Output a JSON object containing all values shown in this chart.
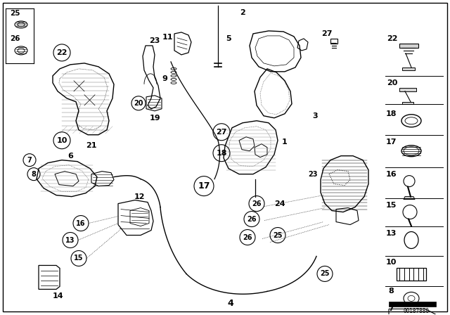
{
  "bg_color": "#ffffff",
  "part_number": "00187880",
  "fig_w": 6.4,
  "fig_h": 4.48,
  "dpi": 100
}
